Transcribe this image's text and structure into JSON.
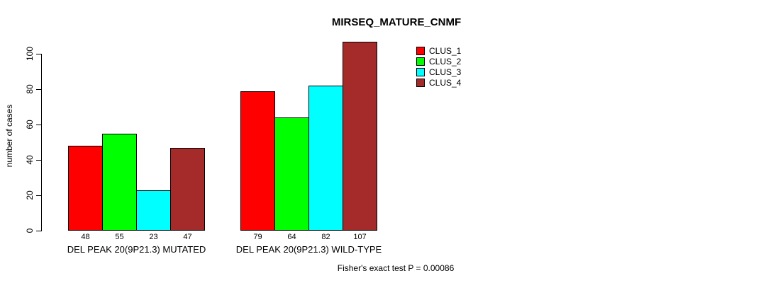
{
  "figure": {
    "title": "MIRSEQ_MATURE_CNMF",
    "footer": "Fisher's exact test P = 0.00086"
  },
  "chart_data": {
    "type": "bar",
    "title": "MIRSEQ_MATURE_CNMF",
    "xlabel": "",
    "ylabel": "number of cases",
    "ylim": [
      0,
      100
    ],
    "yticks": [
      0,
      20,
      40,
      60,
      80,
      100
    ],
    "grid": false,
    "legend_position": "top-right",
    "categories": [
      "DEL PEAK 20(9P21.3) MUTATED",
      "DEL PEAK 20(9P21.3) WILD-TYPE"
    ],
    "series": [
      {
        "name": "CLUS_1",
        "color": "#FF0000",
        "values": [
          48,
          79
        ]
      },
      {
        "name": "CLUS_2",
        "color": "#00FF00",
        "values": [
          55,
          64
        ]
      },
      {
        "name": "CLUS_3",
        "color": "#00FFFF",
        "values": [
          23,
          82
        ]
      },
      {
        "name": "CLUS_4",
        "color": "#A52A2A",
        "values": [
          47,
          107
        ]
      }
    ],
    "bar_value_labels": [
      [
        48,
        55,
        23,
        47
      ],
      [
        79,
        64,
        82,
        107
      ]
    ],
    "annotation": "Fisher's exact test P = 0.00086"
  }
}
